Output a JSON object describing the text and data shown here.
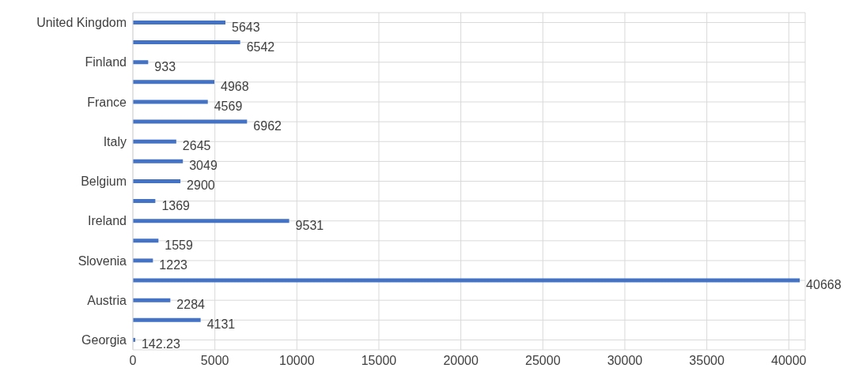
{
  "chart_data": {
    "type": "bar",
    "orientation": "horizontal",
    "categories": [
      "United Kingdom",
      null,
      "Finland",
      null,
      "France",
      null,
      "Italy",
      null,
      "Belgium",
      null,
      "Ireland",
      null,
      "Slovenia",
      null,
      "Austria",
      null,
      "Georgia"
    ],
    "values": [
      5643,
      6542,
      933,
      4968,
      4569,
      6962,
      2645,
      3049,
      2900,
      1369,
      9531,
      1559,
      1223,
      40668,
      2284,
      4131,
      142.23
    ],
    "color": "#4472c4",
    "data_labels": true,
    "xlim": [
      0,
      41000
    ],
    "xticks": [
      0,
      5000,
      10000,
      15000,
      20000,
      25000,
      30000,
      35000,
      40000
    ],
    "grid": true
  }
}
